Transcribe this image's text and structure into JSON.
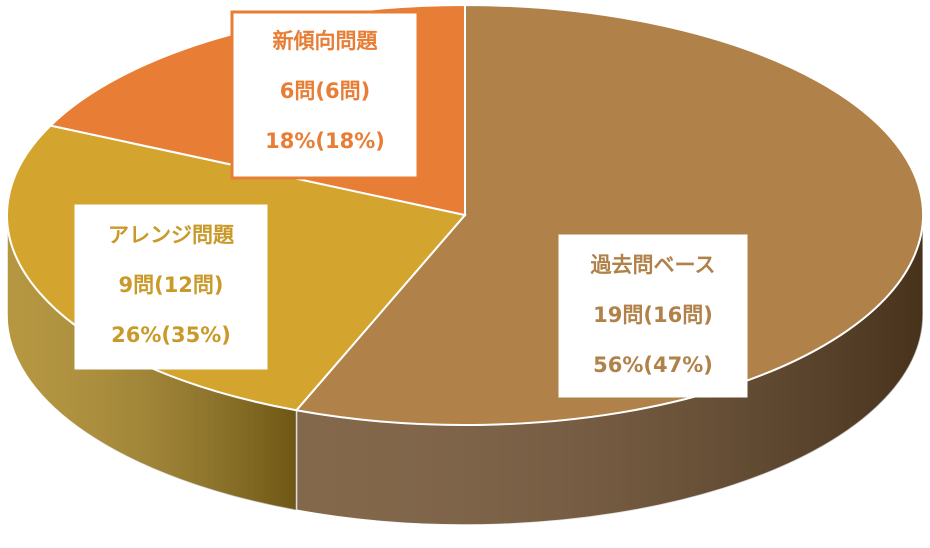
{
  "chart_data": {
    "type": "pie3d",
    "categories": [
      "過去問ベース",
      "アレンジ問題",
      "新傾向問題"
    ],
    "values": [
      56,
      26,
      18
    ],
    "value_labels": [
      "56%(47%)",
      "26%(35%)",
      "18%(18%)"
    ],
    "count_labels": [
      "19問(16問)",
      "9問(12問)",
      "6問(6問)"
    ],
    "colors": [
      "#b0824a",
      "#d4a52e",
      "#e87d35"
    ],
    "side_colors": [
      "#6e4d2b",
      "#a9851f",
      "#b55e24"
    ]
  }
}
